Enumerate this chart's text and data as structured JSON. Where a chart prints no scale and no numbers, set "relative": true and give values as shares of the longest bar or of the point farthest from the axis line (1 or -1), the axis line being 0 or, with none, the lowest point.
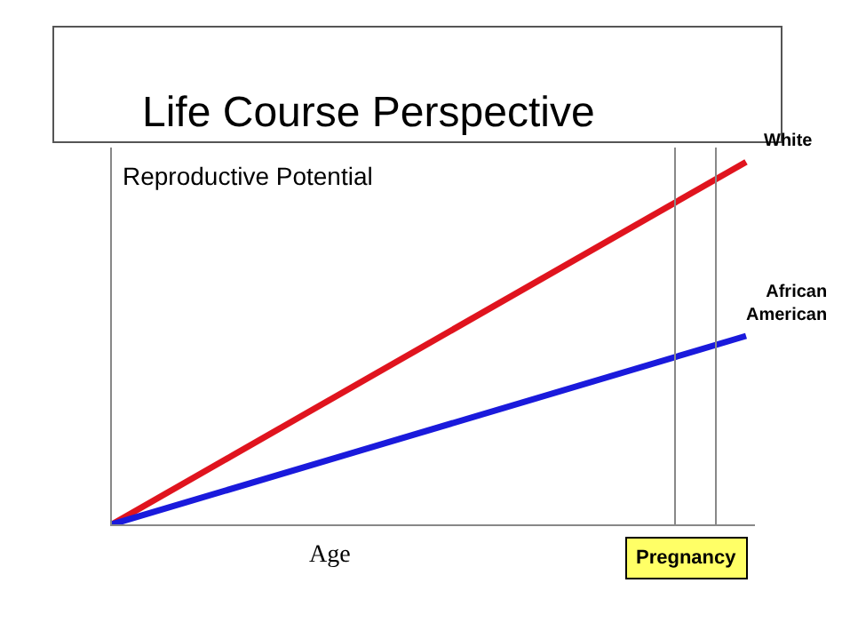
{
  "chart_data": {
    "type": "line",
    "title": "Life Course Perspective",
    "xlabel": "Age",
    "ylabel": "Reproductive Potential",
    "relative": true,
    "categories": [
      null,
      null
    ],
    "legend": false,
    "marker": "none",
    "line_style": "solid",
    "series": [
      {
        "name": "White",
        "color": "#e0141e",
        "values": [
          0,
          1
        ]
      },
      {
        "name": "African American",
        "color": "#1a1adc",
        "values": [
          0,
          0.52
        ]
      }
    ],
    "annotations": [
      "Pregnancy"
    ]
  }
}
